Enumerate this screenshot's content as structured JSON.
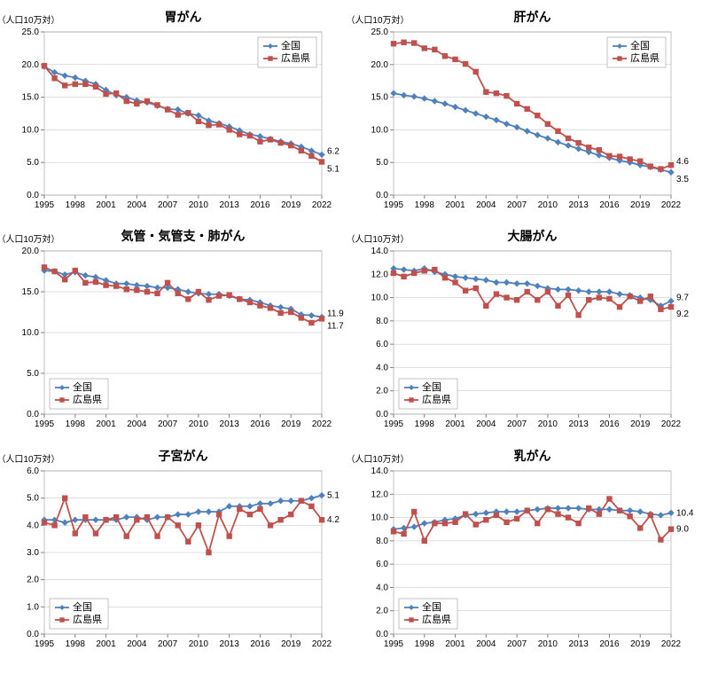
{
  "global": {
    "ylabel": "（人口10万対）",
    "ylabel_fontsize": 10,
    "title_fontsize": 14,
    "tick_fontsize": 10,
    "end_label_fontsize": 10,
    "legend_fontsize": 11,
    "x_values": [
      1995,
      1996,
      1997,
      1998,
      1999,
      2000,
      2001,
      2002,
      2003,
      2004,
      2005,
      2006,
      2007,
      2008,
      2009,
      2010,
      2011,
      2012,
      2013,
      2014,
      2015,
      2016,
      2017,
      2018,
      2019,
      2020,
      2021,
      2022
    ],
    "x_ticks": [
      1995,
      1998,
      2001,
      2004,
      2007,
      2010,
      2013,
      2016,
      2019,
      2022
    ],
    "series_labels": {
      "national": "全国",
      "hiroshima": "広島県"
    },
    "colors": {
      "national_line": "#4f81bd",
      "national_marker": "#4f81bd",
      "hiroshima_line": "#c0504d",
      "hiroshima_marker": "#c0504d",
      "grid": "#bfbfbf",
      "axis": "#808080",
      "text": "#000000",
      "background": "#ffffff"
    },
    "line_width": 1.8,
    "marker_size": 3
  },
  "charts": [
    {
      "title": "胃がん",
      "ylim": [
        0,
        25
      ],
      "ytick_step": 5,
      "legend_pos": "top-right",
      "national": [
        19.7,
        18.8,
        18.3,
        18.0,
        17.5,
        17.0,
        16.1,
        15.3,
        15.0,
        14.5,
        14.2,
        13.7,
        13.2,
        13.1,
        12.5,
        12.2,
        11.4,
        11.0,
        10.5,
        9.9,
        9.3,
        9.0,
        8.6,
        8.2,
        7.9,
        7.4,
        6.8,
        6.2
      ],
      "hiroshima": [
        19.8,
        17.9,
        16.8,
        17.0,
        17.0,
        16.6,
        15.5,
        15.6,
        14.4,
        14.0,
        14.4,
        13.8,
        13.1,
        12.3,
        12.6,
        11.3,
        10.7,
        10.8,
        10.0,
        9.3,
        9.1,
        8.2,
        8.5,
        8.0,
        7.6,
        6.8,
        6.0,
        5.1
      ],
      "end_labels": {
        "national": "6.2",
        "hiroshima": "5.1"
      }
    },
    {
      "title": "肝がん",
      "ylim": [
        0,
        25
      ],
      "ytick_step": 5,
      "legend_pos": "top-right",
      "national": [
        15.6,
        15.3,
        15.1,
        14.8,
        14.4,
        14.0,
        13.5,
        13.0,
        12.5,
        12.0,
        11.5,
        10.9,
        10.4,
        9.8,
        9.2,
        8.7,
        8.1,
        7.6,
        7.1,
        6.6,
        6.1,
        5.7,
        5.3,
        5.0,
        4.6,
        4.3,
        3.9,
        3.5
      ],
      "hiroshima": [
        23.2,
        23.4,
        23.3,
        22.5,
        22.3,
        21.3,
        20.8,
        20.1,
        18.9,
        15.8,
        15.6,
        15.2,
        14.0,
        13.2,
        12.2,
        10.9,
        9.8,
        8.7,
        8.0,
        7.3,
        6.9,
        6.0,
        5.9,
        5.5,
        5.2,
        4.4,
        4.0,
        4.6
      ],
      "end_labels": {
        "national": "3.5",
        "hiroshima": "4.6"
      }
    },
    {
      "title": "気管・気管支・肺がん",
      "ylim": [
        0,
        20
      ],
      "ytick_step": 5,
      "legend_pos": "bottom-left",
      "national": [
        17.6,
        17.5,
        17.1,
        17.4,
        17.0,
        16.8,
        16.4,
        16.0,
        16.0,
        15.8,
        15.7,
        15.5,
        15.5,
        15.3,
        15.0,
        14.8,
        14.7,
        14.7,
        14.5,
        14.1,
        14.0,
        13.7,
        13.3,
        13.1,
        12.9,
        12.2,
        12.1,
        11.9
      ],
      "hiroshima": [
        18.0,
        17.5,
        16.5,
        17.6,
        16.1,
        16.2,
        15.8,
        15.7,
        15.3,
        15.2,
        15.0,
        14.8,
        16.1,
        14.8,
        14.1,
        15.0,
        14.0,
        14.5,
        14.6,
        14.1,
        13.7,
        13.3,
        13.0,
        12.4,
        12.5,
        11.8,
        11.2,
        11.7
      ],
      "end_labels": {
        "national": "11.9",
        "hiroshima": "11.7"
      }
    },
    {
      "title": "大腸がん",
      "ylim": [
        0,
        14
      ],
      "ytick_step": 2,
      "legend_pos": "bottom-left",
      "national": [
        12.5,
        12.4,
        12.3,
        12.5,
        12.2,
        12.0,
        11.8,
        11.7,
        11.6,
        11.5,
        11.3,
        11.3,
        11.2,
        11.2,
        11.0,
        10.8,
        10.7,
        10.7,
        10.6,
        10.5,
        10.5,
        10.5,
        10.3,
        10.2,
        10.0,
        9.8,
        9.3,
        9.7
      ],
      "hiroshima": [
        12.1,
        11.8,
        12.1,
        12.3,
        12.4,
        11.7,
        11.3,
        10.6,
        10.8,
        9.3,
        10.3,
        10.0,
        9.8,
        10.5,
        9.8,
        10.5,
        9.3,
        10.2,
        8.5,
        9.8,
        10.0,
        9.9,
        9.2,
        10.1,
        9.7,
        10.1,
        9.0,
        9.2
      ],
      "end_labels": {
        "national": "9.7",
        "hiroshima": "9.2"
      }
    },
    {
      "title": "子宮がん",
      "ylim": [
        0,
        6
      ],
      "ytick_step": 1,
      "legend_pos": "bottom-left",
      "national": [
        4.2,
        4.2,
        4.1,
        4.2,
        4.2,
        4.2,
        4.2,
        4.2,
        4.3,
        4.3,
        4.2,
        4.3,
        4.3,
        4.4,
        4.4,
        4.5,
        4.5,
        4.5,
        4.7,
        4.7,
        4.7,
        4.8,
        4.8,
        4.9,
        4.9,
        4.9,
        5.0,
        5.1
      ],
      "hiroshima": [
        4.1,
        4.0,
        5.0,
        3.7,
        4.3,
        3.7,
        4.2,
        4.3,
        3.6,
        4.2,
        4.3,
        3.6,
        4.3,
        4.0,
        3.4,
        4.0,
        3.0,
        4.4,
        3.6,
        4.6,
        4.4,
        4.6,
        4.0,
        4.2,
        4.4,
        4.9,
        4.7,
        4.2
      ],
      "end_labels": {
        "national": "5.1",
        "hiroshima": "4.2"
      }
    },
    {
      "title": "乳がん",
      "ylim": [
        0,
        14
      ],
      "ytick_step": 2,
      "legend_pos": "bottom-left",
      "national": [
        9.0,
        9.1,
        9.2,
        9.5,
        9.6,
        9.8,
        9.9,
        10.2,
        10.3,
        10.4,
        10.5,
        10.5,
        10.5,
        10.6,
        10.7,
        10.8,
        10.8,
        10.8,
        10.8,
        10.7,
        10.7,
        10.7,
        10.6,
        10.6,
        10.5,
        10.3,
        10.2,
        10.4
      ],
      "hiroshima": [
        8.8,
        8.6,
        10.5,
        8.0,
        9.5,
        9.5,
        9.6,
        10.3,
        9.4,
        9.8,
        10.2,
        9.6,
        9.9,
        10.6,
        9.5,
        10.7,
        10.3,
        10.0,
        9.5,
        10.8,
        10.3,
        11.6,
        10.6,
        10.1,
        9.1,
        10.2,
        8.1,
        9.0
      ],
      "end_labels": {
        "national": "10.4",
        "hiroshima": "9.0"
      }
    }
  ]
}
